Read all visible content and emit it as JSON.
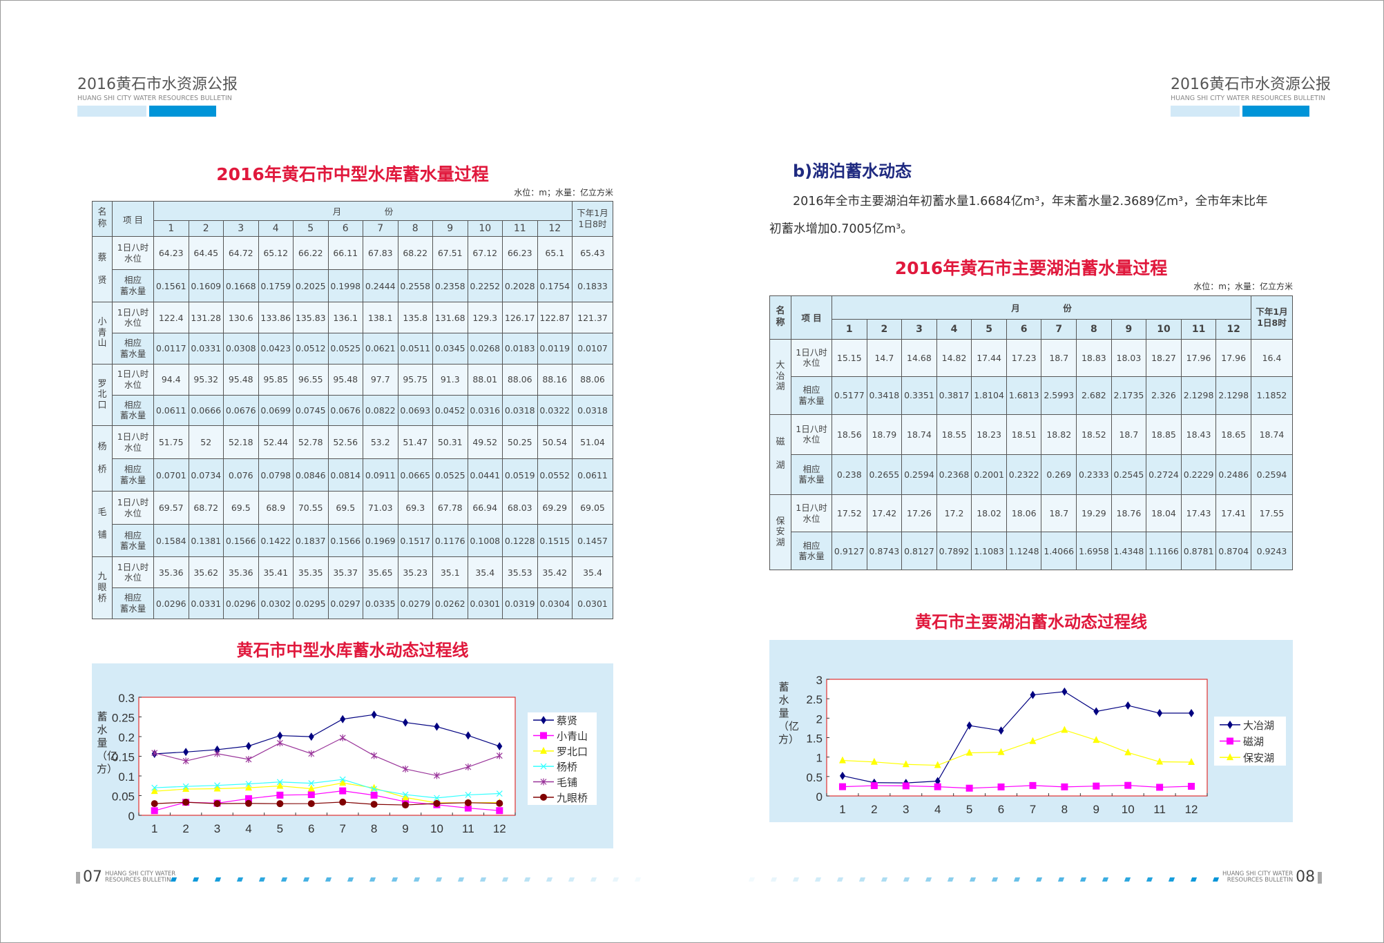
{
  "header": {
    "title_cn": "2016黄石市水资源公报",
    "title_en": "HUANG SHI CITY WATER RESOURCES BULLETIN"
  },
  "footer": {
    "left_page": "07",
    "right_page": "08",
    "text": "HUANG SHI CITY WATER\nRESOURCES BULLETIN"
  },
  "colors": {
    "accent_blue": "#0094d8",
    "light_blue": "#d2e9f7",
    "title_red": "#e0183c",
    "heading_navy": "#1f2a80",
    "chart_bg": "#d5ebf7"
  },
  "left": {
    "table_title": "2016年黄石市中型水库蓄水量过程",
    "units": "水位：m；水量：亿立方米",
    "table": {
      "col_name": "名称",
      "col_item": "项 目",
      "month_header": "月　　　　　份",
      "months": [
        "1",
        "2",
        "3",
        "4",
        "5",
        "6",
        "7",
        "8",
        "9",
        "10",
        "11",
        "12"
      ],
      "last_col": "下年1月1日8时",
      "level_label": "1日八时\n水位",
      "storage_label": "相应\n蓄水量",
      "rows": [
        {
          "name": "蔡贤",
          "level": [
            "64.23",
            "64.45",
            "64.72",
            "65.12",
            "66.22",
            "66.11",
            "67.83",
            "68.22",
            "67.51",
            "67.12",
            "66.23",
            "65.1",
            "65.43"
          ],
          "storage": [
            "0.1561",
            "0.1609",
            "0.1668",
            "0.1759",
            "0.2025",
            "0.1998",
            "0.2444",
            "0.2558",
            "0.2358",
            "0.2252",
            "0.2028",
            "0.1754",
            "0.1833"
          ]
        },
        {
          "name": "小青山",
          "level": [
            "122.4",
            "131.28",
            "130.6",
            "133.86",
            "135.83",
            "136.1",
            "138.1",
            "135.8",
            "131.68",
            "129.3",
            "126.17",
            "122.87",
            "121.37"
          ],
          "storage": [
            "0.0117",
            "0.0331",
            "0.0308",
            "0.0423",
            "0.0512",
            "0.0525",
            "0.0621",
            "0.0511",
            "0.0345",
            "0.0268",
            "0.0183",
            "0.0119",
            "0.0107"
          ]
        },
        {
          "name": "罗北口",
          "level": [
            "94.4",
            "95.32",
            "95.48",
            "95.85",
            "96.55",
            "95.48",
            "97.7",
            "95.75",
            "91.3",
            "88.01",
            "88.06",
            "88.16",
            "88.06"
          ],
          "storage": [
            "0.0611",
            "0.0666",
            "0.0676",
            "0.0699",
            "0.0745",
            "0.0676",
            "0.0822",
            "0.0693",
            "0.0452",
            "0.0316",
            "0.0318",
            "0.0322",
            "0.0318"
          ]
        },
        {
          "name": "杨桥",
          "level": [
            "51.75",
            "52",
            "52.18",
            "52.44",
            "52.78",
            "52.56",
            "53.2",
            "51.47",
            "50.31",
            "49.52",
            "50.25",
            "50.54",
            "51.04"
          ],
          "storage": [
            "0.0701",
            "0.0734",
            "0.076",
            "0.0798",
            "0.0846",
            "0.0814",
            "0.0911",
            "0.0665",
            "0.0525",
            "0.0441",
            "0.0519",
            "0.0552",
            "0.0611"
          ]
        },
        {
          "name": "毛铺",
          "level": [
            "69.57",
            "68.72",
            "69.5",
            "68.9",
            "70.55",
            "69.5",
            "71.03",
            "69.3",
            "67.78",
            "66.94",
            "68.03",
            "69.29",
            "69.05"
          ],
          "storage": [
            "0.1584",
            "0.1381",
            "0.1566",
            "0.1422",
            "0.1837",
            "0.1566",
            "0.1969",
            "0.1517",
            "0.1176",
            "0.1008",
            "0.1228",
            "0.1515",
            "0.1457"
          ]
        },
        {
          "name": "九眼桥",
          "level": [
            "35.36",
            "35.62",
            "35.36",
            "35.41",
            "35.35",
            "35.37",
            "35.65",
            "35.23",
            "35.1",
            "35.4",
            "35.53",
            "35.42",
            "35.4"
          ],
          "storage": [
            "0.0296",
            "0.0331",
            "0.0296",
            "0.0302",
            "0.0295",
            "0.0297",
            "0.0335",
            "0.0279",
            "0.0262",
            "0.0301",
            "0.0319",
            "0.0304",
            "0.0301"
          ]
        }
      ]
    },
    "chart_title": "黄石市中型水库蓄水动态过程线"
  },
  "right": {
    "section_heading": "b)湖泊蓄水动态",
    "paragraph_line1": "2016年全市主要湖泊年初蓄水量1.6684亿m³，年末蓄水量2.3689亿m³，全市年末比年",
    "paragraph_line2": "初蓄水增加0.7005亿m³。",
    "table_title": "2016年黄石市主要湖泊蓄水量过程",
    "units": "水位：m；水量：亿立方米",
    "table": {
      "col_name": "名称",
      "col_item": "项 目",
      "month_header": "月　　　　　份",
      "months": [
        "1",
        "2",
        "3",
        "4",
        "5",
        "6",
        "7",
        "8",
        "9",
        "10",
        "11",
        "12"
      ],
      "last_col": "下年1月1日8时",
      "level_label": "1日八时\n水位",
      "storage_label": "相应\n蓄水量",
      "rows": [
        {
          "name": "大冶湖",
          "level": [
            "15.15",
            "14.7",
            "14.68",
            "14.82",
            "17.44",
            "17.23",
            "18.7",
            "18.83",
            "18.03",
            "18.27",
            "17.96",
            "17.96",
            "16.4"
          ],
          "storage": [
            "0.5177",
            "0.3418",
            "0.3351",
            "0.3817",
            "1.8104",
            "1.6813",
            "2.5993",
            "2.682",
            "2.1735",
            "2.326",
            "2.1298",
            "2.1298",
            "1.1852"
          ]
        },
        {
          "name": "磁湖",
          "level": [
            "18.56",
            "18.79",
            "18.74",
            "18.55",
            "18.23",
            "18.51",
            "18.82",
            "18.52",
            "18.7",
            "18.85",
            "18.43",
            "18.65",
            "18.74"
          ],
          "storage": [
            "0.238",
            "0.2655",
            "0.2594",
            "0.2368",
            "0.2001",
            "0.2322",
            "0.269",
            "0.2333",
            "0.2545",
            "0.2724",
            "0.2229",
            "0.2486",
            "0.2594"
          ]
        },
        {
          "name": "保安湖",
          "level": [
            "17.52",
            "17.42",
            "17.26",
            "17.2",
            "18.02",
            "18.06",
            "18.7",
            "19.29",
            "18.76",
            "18.04",
            "17.43",
            "17.41",
            "17.55"
          ],
          "storage": [
            "0.9127",
            "0.8743",
            "0.8127",
            "0.7892",
            "1.1083",
            "1.1248",
            "1.4066",
            "1.6958",
            "1.4348",
            "1.1166",
            "0.8781",
            "0.8704",
            "0.9243"
          ]
        }
      ]
    },
    "chart_title": "黄石市主要湖泊蓄水动态过程线"
  },
  "chart_data": [
    {
      "type": "line",
      "title": "黄石市中型水库蓄水动态过程线",
      "xlabel": "",
      "ylabel": "蓄水量（亿方）",
      "categories": [
        "1",
        "2",
        "3",
        "4",
        "5",
        "6",
        "7",
        "8",
        "9",
        "10",
        "11",
        "12"
      ],
      "ylim": [
        0,
        0.3
      ],
      "yticks": [
        "0",
        "0.05",
        "0.1",
        "0.15",
        "0.2",
        "0.25",
        "0.3"
      ],
      "grid": false,
      "legend": "right",
      "series": [
        {
          "name": "蔡贤",
          "color": "#000080",
          "marker": "diamond",
          "values": [
            0.1561,
            0.1609,
            0.1668,
            0.1759,
            0.2025,
            0.1998,
            0.2444,
            0.2558,
            0.2358,
            0.2252,
            0.2028,
            0.1754
          ]
        },
        {
          "name": "小青山",
          "color": "#ff00ff",
          "marker": "square",
          "values": [
            0.0117,
            0.0331,
            0.0308,
            0.0423,
            0.0512,
            0.0525,
            0.0621,
            0.0511,
            0.0345,
            0.0268,
            0.0183,
            0.0119
          ]
        },
        {
          "name": "罗北口",
          "color": "#ffff00",
          "marker": "triangle",
          "values": [
            0.0611,
            0.0666,
            0.0676,
            0.0699,
            0.0745,
            0.0676,
            0.0822,
            0.0693,
            0.0452,
            0.0316,
            0.0318,
            0.0322
          ]
        },
        {
          "name": "杨桥",
          "color": "#33ffff",
          "marker": "x",
          "values": [
            0.0701,
            0.0734,
            0.076,
            0.0798,
            0.0846,
            0.0814,
            0.0911,
            0.0665,
            0.0525,
            0.0441,
            0.0519,
            0.0552
          ]
        },
        {
          "name": "毛铺",
          "color": "#993399",
          "marker": "star",
          "values": [
            0.1584,
            0.1381,
            0.1566,
            0.1422,
            0.1837,
            0.1566,
            0.1969,
            0.1517,
            0.1176,
            0.1008,
            0.1228,
            0.1515
          ]
        },
        {
          "name": "九眼桥",
          "color": "#800000",
          "marker": "circle",
          "values": [
            0.0296,
            0.0331,
            0.0296,
            0.0302,
            0.0295,
            0.0297,
            0.0335,
            0.0279,
            0.0262,
            0.0301,
            0.0319,
            0.0304
          ]
        }
      ]
    },
    {
      "type": "line",
      "title": "黄石市主要湖泊蓄水动态过程线",
      "xlabel": "",
      "ylabel": "蓄水量（亿方）",
      "categories": [
        "1",
        "2",
        "3",
        "4",
        "5",
        "6",
        "7",
        "8",
        "9",
        "10",
        "11",
        "12"
      ],
      "ylim": [
        0,
        3
      ],
      "yticks": [
        "0",
        "0.5",
        "1",
        "1.5",
        "2",
        "2.5",
        "3"
      ],
      "grid": false,
      "legend": "right",
      "series": [
        {
          "name": "大冶湖",
          "color": "#000080",
          "marker": "diamond",
          "values": [
            0.5177,
            0.3418,
            0.3351,
            0.3817,
            1.8104,
            1.6813,
            2.5993,
            2.682,
            2.1735,
            2.326,
            2.1298,
            2.1298
          ]
        },
        {
          "name": "磁湖",
          "color": "#ff00ff",
          "marker": "square",
          "values": [
            0.238,
            0.2655,
            0.2594,
            0.2368,
            0.2001,
            0.2322,
            0.269,
            0.2333,
            0.2545,
            0.2724,
            0.2229,
            0.2486
          ]
        },
        {
          "name": "保安湖",
          "color": "#ffff00",
          "marker": "triangle",
          "values": [
            0.9127,
            0.8743,
            0.8127,
            0.7892,
            1.1083,
            1.1248,
            1.4066,
            1.6958,
            1.4348,
            1.1166,
            0.8781,
            0.8704
          ]
        }
      ]
    }
  ]
}
